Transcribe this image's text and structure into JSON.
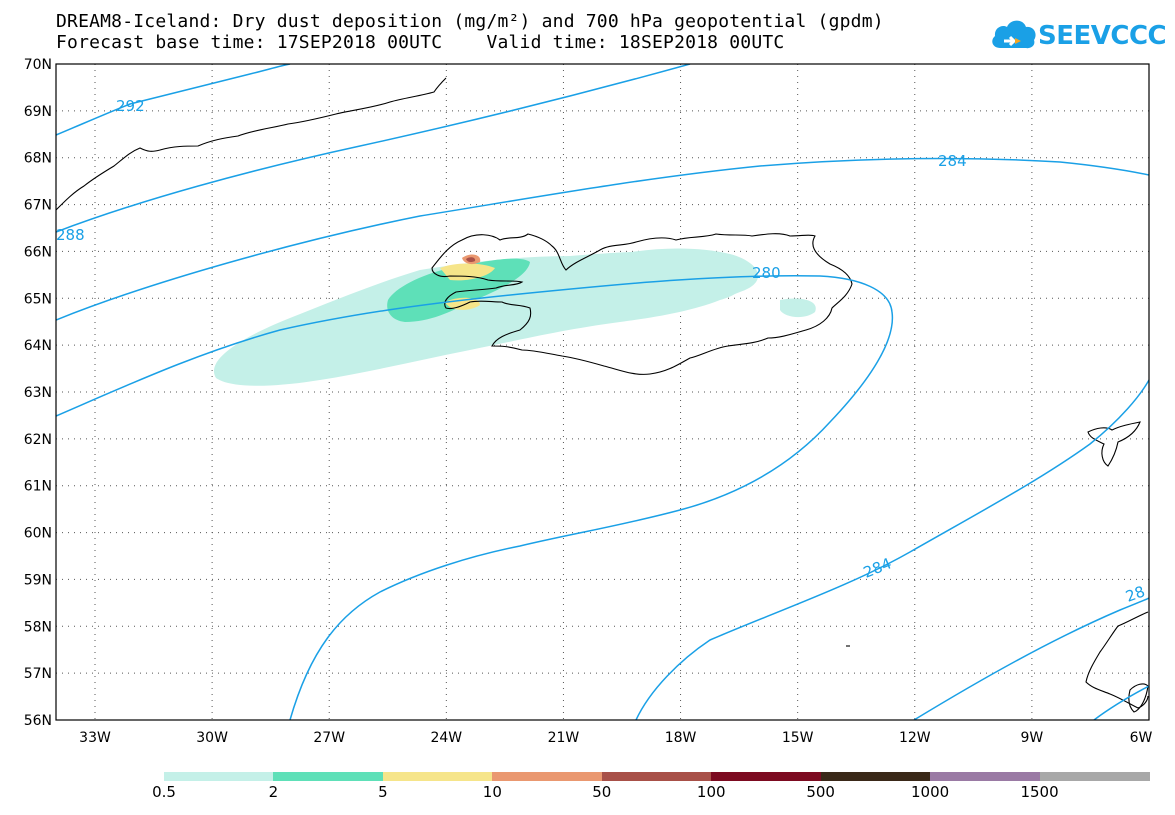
{
  "header": {
    "title_line1": "DREAM8-Iceland: Dry dust deposition (mg/m²) and 700 hPa geopotential (gpdm)",
    "title_line2": "Forecast base time: 17SEP2018 00UTC    Valid time: 18SEP2018 00UTC"
  },
  "logo": {
    "text": "SEEVCCC",
    "color": "#1aa0e6",
    "icon": "cloud-icon"
  },
  "map": {
    "lat_labels": [
      "70N",
      "69N",
      "68N",
      "67N",
      "66N",
      "65N",
      "64N",
      "63N",
      "62N",
      "61N",
      "60N",
      "59N",
      "58N",
      "57N",
      "56N"
    ],
    "lon_labels": [
      "33W",
      "30W",
      "27W",
      "24W",
      "21W",
      "18W",
      "15W",
      "12W",
      "9W",
      "6W"
    ],
    "contour_labels": [
      "292",
      "288",
      "284",
      "280",
      "284",
      "28"
    ],
    "contour_color": "#1aa0e6"
  },
  "legend": {
    "colors": [
      "#c4f0e8",
      "#5ee0b8",
      "#f6e58a",
      "#ea9870",
      "#a85048",
      "#7c0a20",
      "#3a2818",
      "#9a7aa4",
      "#a8a8a8"
    ],
    "labels": [
      "0.5",
      "2",
      "5",
      "10",
      "50",
      "100",
      "500",
      "1000",
      "1500"
    ]
  }
}
